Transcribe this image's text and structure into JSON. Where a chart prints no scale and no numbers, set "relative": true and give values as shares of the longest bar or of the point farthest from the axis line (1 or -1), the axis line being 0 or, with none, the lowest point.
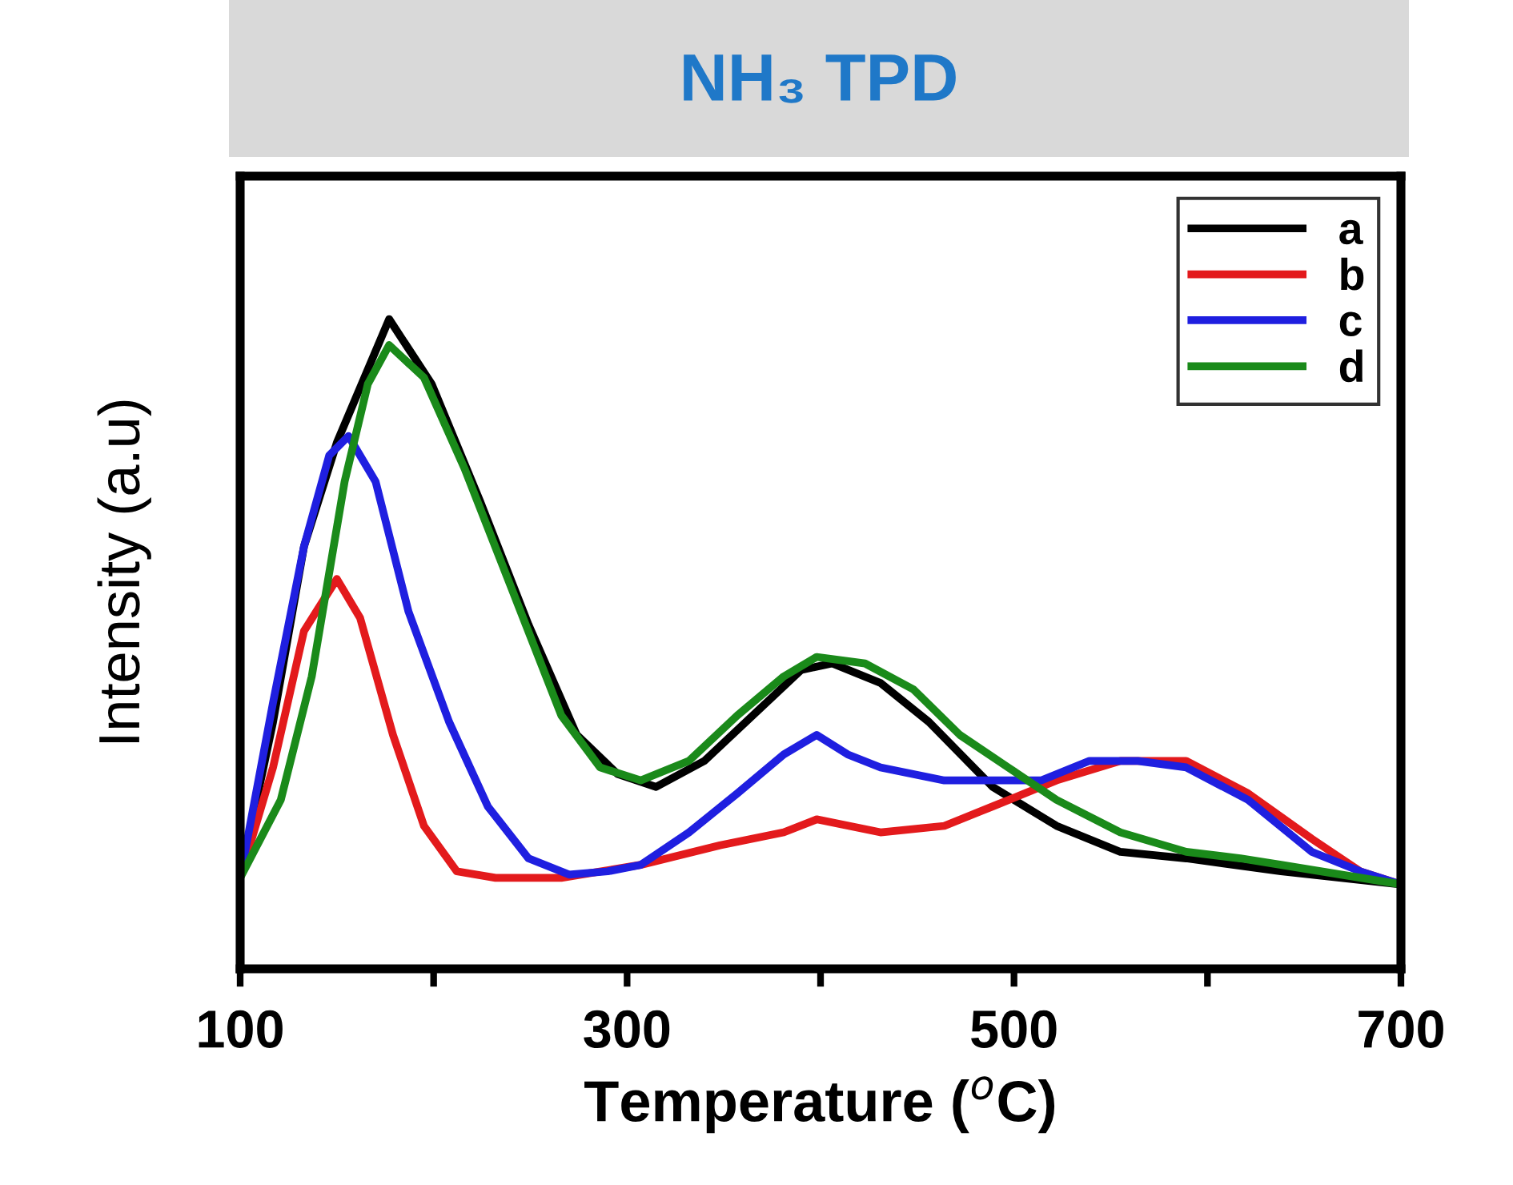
{
  "chart_data": {
    "type": "line",
    "title": "NH₃ TPD",
    "xlabel": "Temperature ($^{o}$C)",
    "ylabel": "Intensity (a.u)",
    "relative": true,
    "xlim": [
      100,
      700
    ],
    "xticks": [
      100,
      {
        "value": 200,
        "label": null
      },
      300,
      {
        "value": 400,
        "label": null
      },
      500,
      {
        "value": 600,
        "label": null
      },
      700
    ],
    "legend": "top right",
    "grid": false,
    "marker": "none",
    "line_style": "solid",
    "series": [
      {
        "name": "a",
        "color": "#000000",
        "x": [
          100,
          117,
          133,
          150,
          177,
          199,
          224,
          249,
          274,
          295,
          315,
          340,
          365,
          390,
          406,
          431,
          456,
          489,
          522,
          555,
          589,
          638,
          700
        ],
        "values": [
          0.14,
          0.38,
          0.65,
          0.81,
          1.0,
          0.9,
          0.72,
          0.53,
          0.36,
          0.3,
          0.28,
          0.32,
          0.39,
          0.46,
          0.47,
          0.44,
          0.38,
          0.28,
          0.22,
          0.18,
          0.17,
          0.15,
          0.13
        ]
      },
      {
        "name": "b",
        "color": "#e31a1c",
        "x": [
          100,
          117,
          133,
          150,
          162,
          179,
          195,
          212,
          232,
          266,
          307,
          348,
          381,
          398,
          431,
          464,
          489,
          522,
          555,
          589,
          621,
          654,
          679,
          700
        ],
        "values": [
          0.14,
          0.31,
          0.52,
          0.6,
          0.54,
          0.36,
          0.22,
          0.15,
          0.14,
          0.14,
          0.16,
          0.19,
          0.21,
          0.23,
          0.21,
          0.22,
          0.25,
          0.29,
          0.32,
          0.32,
          0.27,
          0.2,
          0.15,
          0.13
        ]
      },
      {
        "name": "c",
        "color": "#1f1fe0",
        "x": [
          100,
          117,
          133,
          146,
          156,
          170,
          187,
          208,
          228,
          249,
          270,
          290,
          307,
          332,
          357,
          381,
          398,
          414,
          431,
          464,
          489,
          514,
          539,
          564,
          589,
          621,
          654,
          679,
          700
        ],
        "values": [
          0.14,
          0.41,
          0.65,
          0.79,
          0.82,
          0.75,
          0.55,
          0.38,
          0.25,
          0.17,
          0.145,
          0.15,
          0.16,
          0.21,
          0.27,
          0.33,
          0.36,
          0.33,
          0.31,
          0.29,
          0.29,
          0.29,
          0.32,
          0.32,
          0.31,
          0.26,
          0.18,
          0.15,
          0.13
        ]
      },
      {
        "name": "d",
        "color": "#1a8a1a",
        "x": [
          100,
          121,
          137,
          154,
          166,
          177,
          195,
          216,
          241,
          266,
          286,
          307,
          332,
          357,
          381,
          398,
          423,
          448,
          472,
          497,
          522,
          555,
          589,
          617,
          638,
          700
        ],
        "values": [
          0.14,
          0.26,
          0.45,
          0.75,
          0.9,
          0.96,
          0.91,
          0.77,
          0.58,
          0.39,
          0.31,
          0.29,
          0.32,
          0.39,
          0.45,
          0.48,
          0.47,
          0.43,
          0.36,
          0.31,
          0.26,
          0.21,
          0.18,
          0.17,
          0.16,
          0.13
        ]
      }
    ]
  }
}
